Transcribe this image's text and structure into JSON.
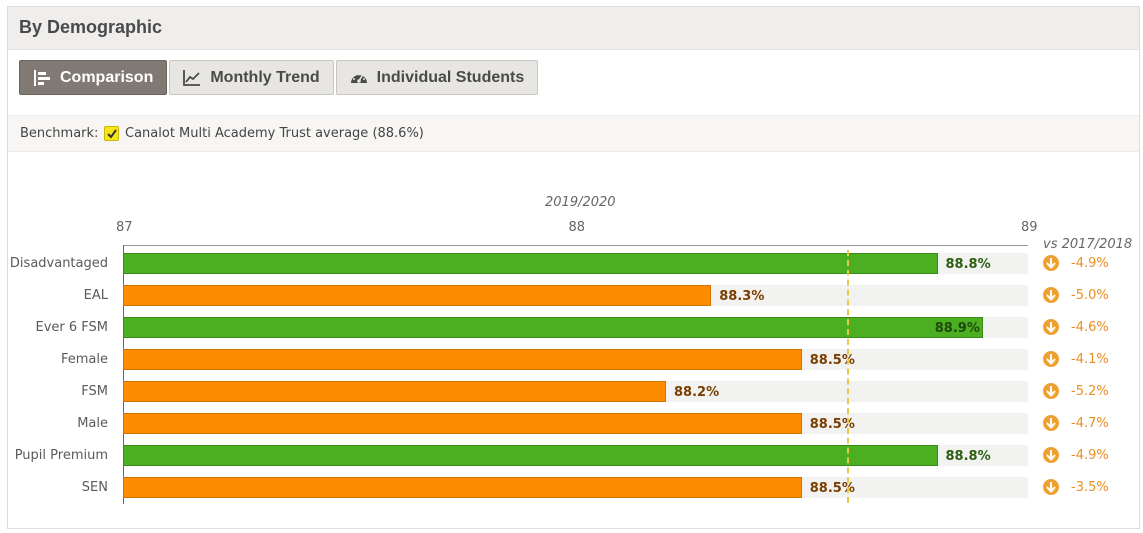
{
  "panel": {
    "title": "By Demographic"
  },
  "tabs": [
    {
      "label": "Comparison",
      "active": true,
      "icon": "bar-chart-icon"
    },
    {
      "label": "Monthly Trend",
      "active": false,
      "icon": "line-chart-icon"
    },
    {
      "label": "Individual Students",
      "active": false,
      "icon": "gauge-icon"
    }
  ],
  "benchmark": {
    "label": "Benchmark:",
    "checked": true,
    "text": "Canalot Multi Academy Trust average (88.6%)",
    "value": 88.6
  },
  "colors": {
    "above": "#4caf22",
    "below": "#ff8c00",
    "benchmark_line": "#e8c84a",
    "change": "#e89024"
  },
  "chart_data": {
    "type": "bar",
    "orientation": "horizontal",
    "title": "2019/2020",
    "xlim": [
      87,
      89
    ],
    "ticks": [
      "87",
      "88",
      "89"
    ],
    "comparison_label": "vs 2017/2018",
    "benchmark": 88.6,
    "categories": [
      "Disadvantaged",
      "EAL",
      "Ever 6 FSM",
      "Female",
      "FSM",
      "Male",
      "Pupil Premium",
      "SEN"
    ],
    "values": [
      88.8,
      88.3,
      88.9,
      88.5,
      88.2,
      88.5,
      88.8,
      88.5
    ],
    "value_labels": [
      "88.8%",
      "88.3%",
      "88.9%",
      "88.5%",
      "88.2%",
      "88.5%",
      "88.8%",
      "88.5%"
    ],
    "changes": [
      "-4.9%",
      "-5.0%",
      "-4.6%",
      "-4.1%",
      "-5.2%",
      "-4.7%",
      "-4.9%",
      "-3.5%"
    ],
    "change_direction": "down"
  }
}
